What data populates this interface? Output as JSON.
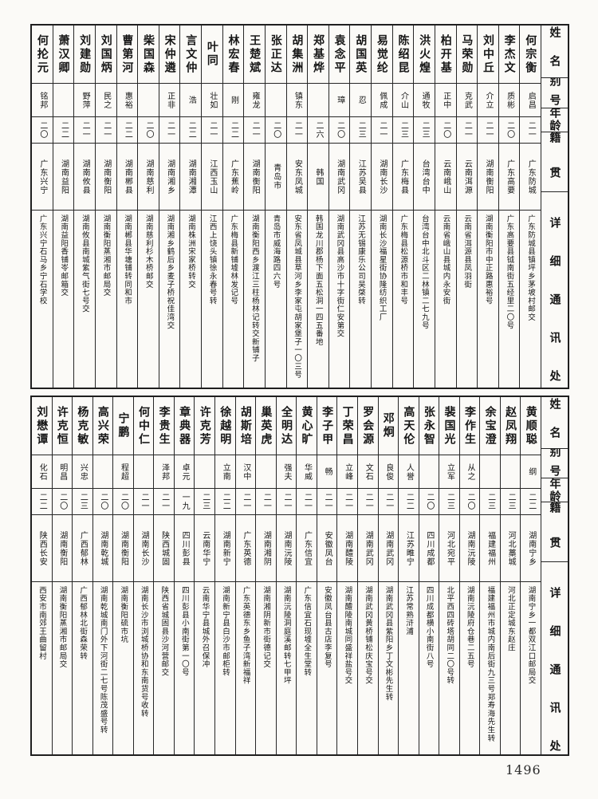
{
  "page": {
    "number": "1496"
  },
  "columns_header": {
    "name": "姓名",
    "alias": "别号",
    "age": "年龄",
    "native": "籍贯",
    "address": "详细通讯处"
  },
  "top_table": {
    "people": [
      {
        "name": "何宗衡",
        "alias": "启昌",
        "age": "二一",
        "native": "广东防城",
        "address": "广东防城县镇坪乡茅坡村邮交"
      },
      {
        "name": "李杰文",
        "alias": "质彬",
        "age": "二〇",
        "native": "广东高要",
        "address": "广东高要县钺南街五经里二〇号"
      },
      {
        "name": "刘中丘",
        "alias": "介立",
        "age": "二一",
        "native": "湖南衡阳",
        "address": "湖南衡阳市中正路惠裕号"
      },
      {
        "name": "马荣勋",
        "alias": "克武",
        "age": "二一",
        "native": "云南洱源",
        "address": "云南省洱源县凤羽街"
      },
      {
        "name": "柏开基",
        "alias": "正中",
        "age": "二〇",
        "native": "云南峨山",
        "address": "云南省峨山县城内永安街"
      },
      {
        "name": "洪火煌",
        "alias": "通牧",
        "age": "二三",
        "native": "台湾台中",
        "address": "台湾台中北斗区二林镇二七九号"
      },
      {
        "name": "陈绍昆",
        "alias": "介山",
        "age": "二三",
        "native": "广东梅县",
        "address": "广东梅县松源桥市和丰号"
      },
      {
        "name": "易觉纶",
        "alias": "佩成",
        "age": "二一",
        "native": "湖南长沙",
        "address": "湖南长沙福星街协隆纺织工厂"
      },
      {
        "name": "胡国英",
        "alias": "忍",
        "age": "二三",
        "native": "江苏吴县",
        "address": "江苏无锡康乐公司吴棨转"
      },
      {
        "name": "袁念平",
        "alias": "璋",
        "age": "二〇",
        "native": "湖南武冈",
        "address": "湖南武冈县高沙市十字街仁安第交"
      },
      {
        "name": "郑基烨",
        "alias": "",
        "age": "二六",
        "native": "韩国",
        "address": "韩国龙川郡杨下面五松洞一四五番地"
      },
      {
        "name": "胡集洲",
        "alias": "镇东",
        "age": "二一",
        "native": "安东凤城",
        "address": "安东省凤城县草河乡李家屯胡家堡子一〇三号"
      },
      {
        "name": "张正达",
        "alias": "",
        "age": "二〇",
        "native": "青岛市",
        "address": "青岛市威海路四六号"
      },
      {
        "name": "王楚斌",
        "alias": "雍龙",
        "age": "二一",
        "native": "湖南衡阳",
        "address": "湖南衡阳西乡渡江三柱杨林记转交新铺子"
      },
      {
        "name": "林宏春",
        "alias": "刚",
        "age": "二二",
        "native": "广东蕉岭",
        "address": "广东梅县新铺墟林发记号"
      },
      {
        "name": "叶同",
        "alias": "壮如",
        "age": "二一",
        "native": "江西玉山",
        "address": "江西上饶头镇徐永春号转"
      },
      {
        "name": "言文仲",
        "alias": "浩",
        "age": "二二",
        "native": "湖南湘潭",
        "address": "湖南株洲宋家桥转交"
      },
      {
        "name": "宋仲遴",
        "alias": "正非",
        "age": "二一",
        "native": "湖南湘乡",
        "address": "湖南湘乡鹤后乡麦子桥祝佳湾交"
      },
      {
        "name": "柴国森",
        "alias": "",
        "age": "二〇",
        "native": "湖南慈利",
        "address": "湖南慈利杉木桥邮交"
      },
      {
        "name": "曹第河",
        "alias": "惠裕",
        "age": "二二",
        "native": "湖南郴县",
        "address": "湖南郴县华塘铺转同和市"
      },
      {
        "name": "刘国炳",
        "alias": "民之",
        "age": "二一",
        "native": "湖南衡阳",
        "address": "湖南衡阳蒸湘市邮局交"
      },
      {
        "name": "刘建勋",
        "alias": "野萍",
        "age": "二一",
        "native": "湖南攸县",
        "address": "湖南攸县南城紫气街七号交"
      },
      {
        "name": "萧汉卿",
        "alias": "",
        "age": "二二",
        "native": "湖南益阳",
        "address": "湖南益阳香铺岺邮箱交"
      },
      {
        "name": "何抡元",
        "alias": "铭邦",
        "age": "二〇",
        "native": "广东兴宁",
        "address": "广东兴宁石马乡宁石学校"
      }
    ]
  },
  "bottom_table": {
    "people": [
      {
        "name": "黄顺聪",
        "alias": "纲",
        "age": "二二",
        "native": "湖南宁乡",
        "address": "湖南宁乡一都双江口邮局交"
      },
      {
        "name": "赵凤翔",
        "alias": "",
        "age": "二三",
        "native": "河北藁城",
        "address": "河北正定城东赵庄"
      },
      {
        "name": "余宝澄",
        "alias": "",
        "age": "二三",
        "native": "福建福州",
        "address": "福建福州市城内南后街九三号郑寿海先生转"
      },
      {
        "name": "李作生",
        "alias": "从之",
        "age": "二〇",
        "native": "湖南沅陵",
        "address": "湖南沅陵府仓巷二五号"
      },
      {
        "name": "裴国光",
        "alias": "立军",
        "age": "二三",
        "native": "河北宛平",
        "address": "北平西四砖塔胡同二〇号转"
      },
      {
        "name": "张永智",
        "alias": "",
        "age": "二〇",
        "native": "四川成都",
        "address": "四川成都横小南街八号"
      },
      {
        "name": "高天伦",
        "alias": "人誉",
        "age": "二二",
        "native": "江苏睢宁",
        "address": "江苏常熟浒浦"
      },
      {
        "name": "邓炯",
        "alias": "良俊",
        "age": "二一",
        "native": "湖南武冈",
        "address": "湖南武冈县紫阳乡丁文彬先生转"
      },
      {
        "name": "罗会源",
        "alias": "文石",
        "age": "二一",
        "native": "湖南武冈",
        "address": "湖南武冈黄桥铺松庆宝号交"
      },
      {
        "name": "丁荣昌",
        "alias": "立峰",
        "age": "二一",
        "native": "湖南醴陵",
        "address": "湖南醴陵南城同盛祥盐号交"
      },
      {
        "name": "李子甲",
        "alias": "畅",
        "age": "二一",
        "native": "安徽凤台",
        "address": "安徽凤台县古店李复号"
      },
      {
        "name": "黄心旷",
        "alias": "华威",
        "age": "二一",
        "native": "广东信宜",
        "address": "广东信宜石现墟全生堂转"
      },
      {
        "name": "全明达",
        "alias": "强夫",
        "age": "二一",
        "native": "湖南沅陵",
        "address": "湖南沅陵洞庭溪邮转七甲坪"
      },
      {
        "name": "巢英虎",
        "alias": "",
        "age": "二一",
        "native": "湖南湘阴",
        "address": "湖南湘阴新市街德记交"
      },
      {
        "name": "胡斯培",
        "alias": "汉中",
        "age": "二一",
        "native": "广东英德",
        "address": "广东英德东乡鱼子湾新福祥"
      },
      {
        "name": "徐越明",
        "alias": "立南",
        "age": "二二",
        "native": "湖南新宁",
        "address": "湖南新宁县白沙市邮柜转"
      },
      {
        "name": "许克芳",
        "alias": "",
        "age": "二三",
        "native": "云南华宁",
        "address": "云南华宁县城外召保冲"
      },
      {
        "name": "章典器",
        "alias": "卓元",
        "age": "一九",
        "native": "四川彭县",
        "address": "四川彭县小南街第一〇号"
      },
      {
        "name": "李贵生",
        "alias": "泽邦",
        "age": "二一",
        "native": "陕西城固",
        "address": "陕西省城固县沙河营邮交"
      },
      {
        "name": "何中仁",
        "alias": "",
        "age": "二一",
        "native": "湖南长沙",
        "address": "湖南长沙市浏城桥协和东南货号收转"
      },
      {
        "name": "宁鹏",
        "alias": "程超",
        "age": "二〇",
        "native": "湖南衡阳",
        "address": "湖南衡阳硫市坑"
      },
      {
        "name": "高兴荣",
        "alias": "",
        "age": "二〇",
        "native": "湖南乾城",
        "address": "湖南乾城南门外下河街二七号陈茂盛号转"
      },
      {
        "name": "杨克敏",
        "alias": "兴忠",
        "age": "二三",
        "native": "广西郁林",
        "address": "广西郁林北街森荣转"
      },
      {
        "name": "许克恒",
        "alias": "明昌",
        "age": "二〇",
        "native": "湖南衡阳",
        "address": "湖南衡阳蒸湘市邮局交"
      },
      {
        "name": "刘懋谭",
        "alias": "化石",
        "age": "二二",
        "native": "陕西长安",
        "address": "西安市南郊王曲留村"
      }
    ]
  }
}
